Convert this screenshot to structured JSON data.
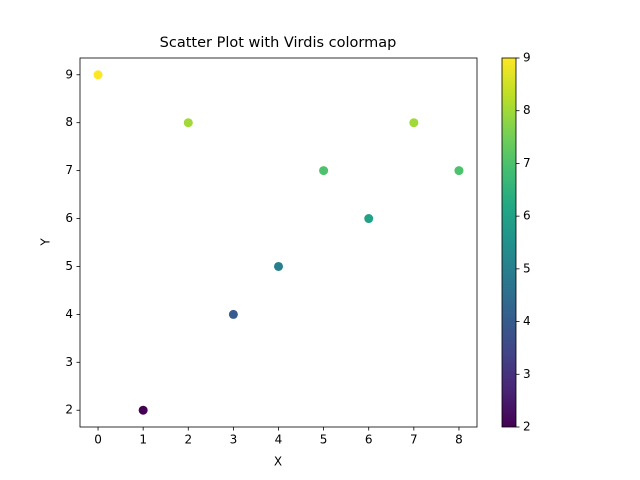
{
  "chart_data": {
    "type": "scatter",
    "title": "Scatter Plot with Virdis colormap",
    "x_label": "X",
    "y_label": "Y",
    "x": [
      0,
      1,
      2,
      3,
      4,
      5,
      6,
      7,
      8
    ],
    "y": [
      9,
      2,
      8,
      4,
      5,
      7,
      6,
      8,
      7
    ],
    "colormap": "viridis",
    "xlim": [
      -0.4,
      8.4
    ],
    "ylim": [
      1.65,
      9.35
    ],
    "xticks": [
      0,
      1,
      2,
      3,
      4,
      5,
      6,
      7,
      8
    ],
    "yticks": [
      2,
      3,
      4,
      5,
      6,
      7,
      8,
      9
    ],
    "clim": [
      2,
      9
    ],
    "cticks": [
      2,
      3,
      4,
      5,
      6,
      7,
      8,
      9
    ]
  }
}
